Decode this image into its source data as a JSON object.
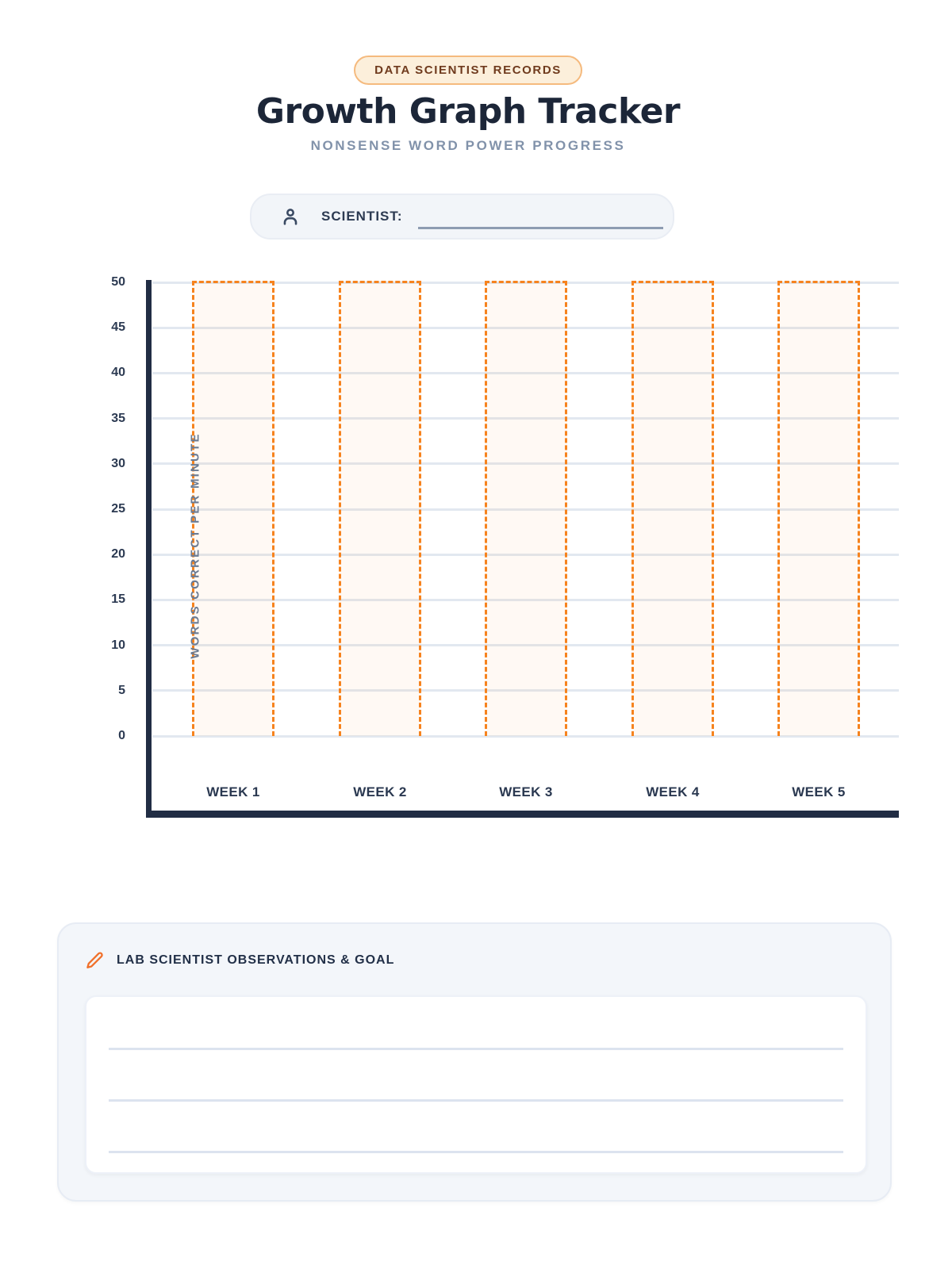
{
  "page": {
    "badge": "DATA SCIENTIST RECORDS",
    "title": "Growth Graph Tracker",
    "subtitle": "NONSENSE WORD POWER PROGRESS"
  },
  "scientist_field": {
    "icon": "user-icon",
    "label": "SCIENTIST:",
    "value": ""
  },
  "chart_data": {
    "type": "bar",
    "title": "",
    "categories": [
      "WEEK 1",
      "WEEK 2",
      "WEEK 3",
      "WEEK 4",
      "WEEK 5"
    ],
    "values": [
      null,
      null,
      null,
      null,
      null
    ],
    "bars_blank_outlined_to": 50,
    "xlabel": "",
    "ylabel": "WORDS CORRECT PER MINUTE",
    "ylim": [
      0,
      50
    ],
    "ytick_step": 5,
    "yticks": [
      0,
      5,
      10,
      15,
      20,
      25,
      30,
      35,
      40,
      45,
      50
    ],
    "grid": true,
    "legend": false,
    "bar_outline_color": "#F6831E"
  },
  "observations": {
    "icon": "pencil-icon",
    "heading": "LAB SCIENTIST OBSERVATIONS & GOAL",
    "ruled_lines": 3,
    "text": ""
  },
  "colors": {
    "accent_orange": "#F6831E",
    "navy": "#1E2A40",
    "slate": "#6B7B93",
    "badge_bg": "#FCEFDB",
    "badge_border": "#F5BA7E",
    "badge_text": "#6F3A1D",
    "grid": "#E2E8F0",
    "panel_bg": "#F3F6FA",
    "panel_border": "#E7ECF4",
    "rule_line": "#DCE3EF",
    "underline": "#8E9CB2"
  }
}
